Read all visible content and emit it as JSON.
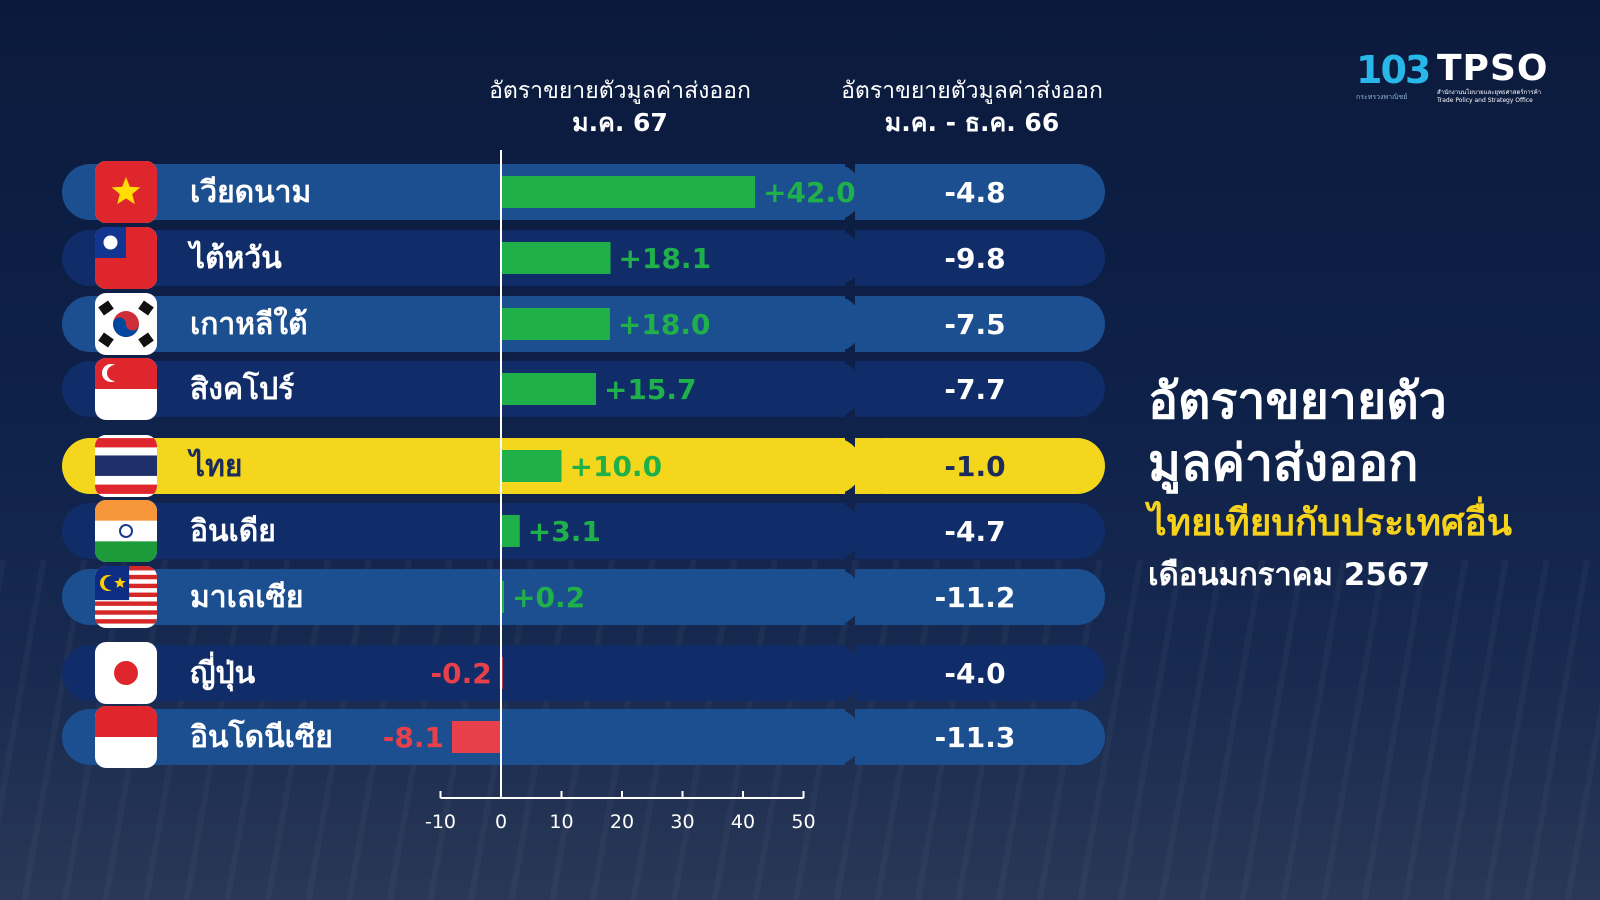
{
  "header": {
    "col1_title": "อัตราขยายตัวมูลค่าส่งออก",
    "col1_period": "ม.ค. 67",
    "col2_title": "อัตราขยายตัวมูลค่าส่งออก",
    "col2_period": "ม.ค. - ธ.ค. 66"
  },
  "logos": {
    "ministry_number": "103",
    "ministry_caption": "กระทรวงพาณิชย์",
    "tpso": "TPSO",
    "tpso_caption_th": "สำนักงานนโยบายและยุทธศาสตร์การค้า",
    "tpso_caption_en": "Trade Policy and Strategy Office"
  },
  "side": {
    "title_line1": "อัตราขยายตัว",
    "title_line2": "มูลค่าส่งออก",
    "subtitle": "ไทยเทียบกับประเทศอื่น",
    "date": "เดือนมกราคม 2567"
  },
  "colors": {
    "row_light": "#1c4f8f",
    "row_dark": "#102d6a",
    "highlight": "#f4d71c",
    "positive": "#1fb04a",
    "negative": "#e8404b"
  },
  "chart_data": {
    "type": "bar",
    "orientation": "horizontal",
    "categories": [
      "เวียดนาม",
      "ไต้หวัน",
      "เกาหลีใต้",
      "สิงคโปร์",
      "ไทย",
      "อินเดีย",
      "มาเลเซีย",
      "ญี่ปุ่น",
      "อินโดนีเซีย"
    ],
    "flags": [
      "vietnam-flag-icon",
      "taiwan-flag-icon",
      "south-korea-flag-icon",
      "singapore-flag-icon",
      "thailand-flag-icon",
      "india-flag-icon",
      "malaysia-flag-icon",
      "japan-flag-icon",
      "indonesia-flag-icon"
    ],
    "highlight": "ไทย",
    "series": [
      {
        "values": [
          42.0,
          18.1,
          18.0,
          15.7,
          10.0,
          3.1,
          0.2,
          -0.2,
          -8.1
        ],
        "labels": [
          "+42.0",
          "+18.1",
          "+18.0",
          "+15.7",
          "+10.0",
          "+3.1",
          "+0.2",
          "-0.2",
          "-8.1"
        ]
      },
      {
        "values": [
          -4.8,
          -9.8,
          -7.5,
          -7.7,
          -1.0,
          -4.7,
          -11.2,
          -4.0,
          -11.3
        ],
        "labels": [
          "-4.8",
          "-9.8",
          "-7.5",
          "-7.7",
          "-1.0",
          "-4.7",
          "-11.2",
          "-4.0",
          "-11.3"
        ]
      }
    ],
    "xlim": [
      -10,
      50
    ],
    "xticks": [
      "-10",
      "0",
      "10",
      "20",
      "30",
      "40",
      "50"
    ]
  }
}
